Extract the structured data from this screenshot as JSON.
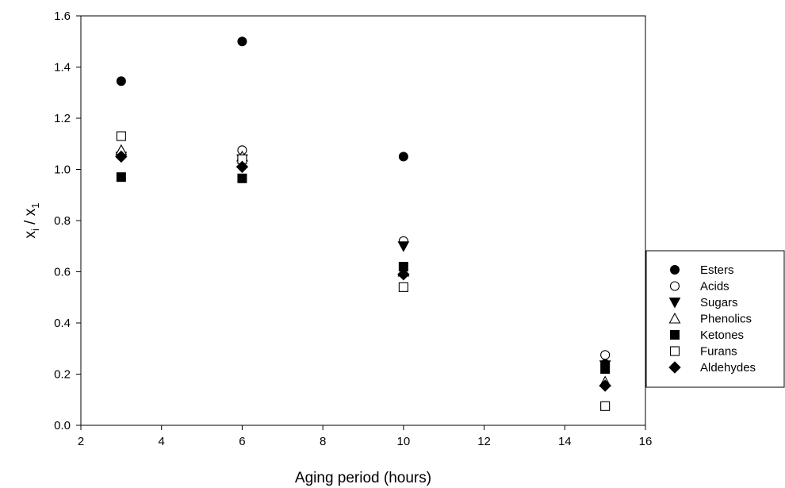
{
  "chart_data": {
    "type": "scatter",
    "xlabel": "Aging period (hours)",
    "ylabel": {
      "main": "x",
      "sub_i": "i",
      "sep": " / ",
      "sub_1": "1"
    },
    "xlim": [
      2,
      16
    ],
    "ylim": [
      0.0,
      1.6
    ],
    "xticks": [
      "2",
      "4",
      "6",
      "8",
      "10",
      "12",
      "14",
      "16"
    ],
    "yticks": [
      "0.0",
      "0.2",
      "0.4",
      "0.6",
      "0.8",
      "1.0",
      "1.2",
      "1.4",
      "1.6"
    ],
    "legend_position": "right",
    "grid": false,
    "x": [
      3,
      6,
      10,
      15
    ],
    "series": [
      {
        "name": "Esters",
        "marker": "circle-filled",
        "values": [
          1.345,
          1.5,
          1.05,
          0.24
        ]
      },
      {
        "name": "Acids",
        "marker": "circle-open",
        "values": [
          1.06,
          1.075,
          0.72,
          0.275
        ]
      },
      {
        "name": "Sugars",
        "marker": "triangle-down-filled",
        "values": [
          1.05,
          1.04,
          0.7,
          0.235
        ]
      },
      {
        "name": "Phenolics",
        "marker": "triangle-up-open",
        "values": [
          1.075,
          1.05,
          0.6,
          0.17
        ]
      },
      {
        "name": "Ketones",
        "marker": "square-filled",
        "values": [
          0.97,
          0.965,
          0.62,
          0.22
        ]
      },
      {
        "name": "Furans",
        "marker": "square-open",
        "values": [
          1.13,
          1.04,
          0.54,
          0.075
        ]
      },
      {
        "name": "Aldehydes",
        "marker": "diamond-filled",
        "values": [
          1.05,
          1.01,
          0.59,
          0.155
        ]
      }
    ]
  }
}
